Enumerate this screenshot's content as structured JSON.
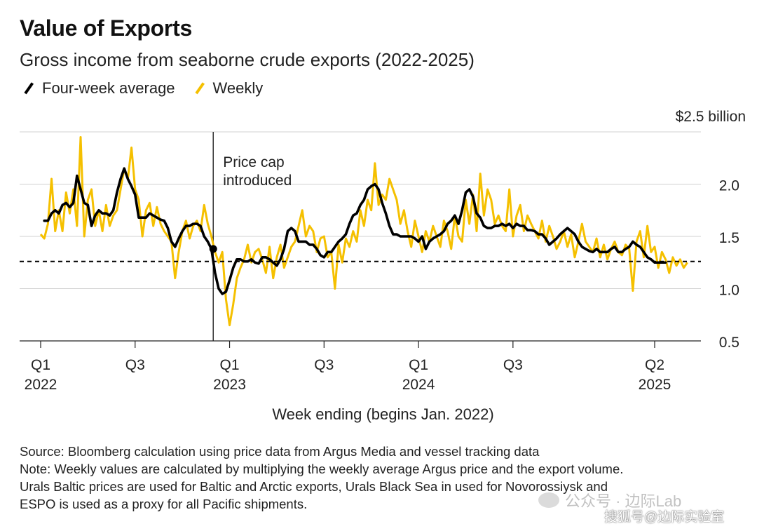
{
  "title": "Value of Exports",
  "subtitle": "Gross income from seaborne crude exports (2022-2025)",
  "legend": {
    "avg_label": "Four-week average",
    "weekly_label": "Weekly"
  },
  "x_axis_title": "Week ending (begins Jan. 2022)",
  "footer": {
    "line1": "Source: Bloomberg calculation using price data from Argus Media and vessel tracking data",
    "line2": "Note: Weekly values are calculated by multiplying the weekly average Argus price and the export volume.",
    "line3": "Urals Baltic prices are used for Baltic and Arctic exports, Urals Black Sea in used for Novorossiysk and",
    "line4": "ESPO is used as a proxy for all Pacific shipments."
  },
  "watermark": {
    "line1": "公众号 · 边际Lab",
    "line2": "搜狐号@边际实验室"
  },
  "colors": {
    "weekly": "#f5c000",
    "average": "#000000",
    "grid": "#d0d0d0",
    "axis": "#222222"
  },
  "chart_data": {
    "type": "line",
    "title": "Value of Exports",
    "subtitle": "Gross income from seaborne crude exports (2022-2025)",
    "xlabel": "Week ending (begins Jan. 2022)",
    "ylabel": "",
    "y_unit": "$ billion",
    "ylim": [
      0.35,
      2.5
    ],
    "y_ticks": [
      {
        "value": 2.5,
        "label": "$2.5 billion"
      },
      {
        "value": 2.0,
        "label": "2.0"
      },
      {
        "value": 1.5,
        "label": "1.5"
      },
      {
        "value": 1.0,
        "label": "1.0"
      },
      {
        "value": 0.5,
        "label": "0.5"
      }
    ],
    "x_ticks": [
      {
        "week": 0,
        "line1": "Q1",
        "line2": "2022"
      },
      {
        "week": 26,
        "line1": "Q3",
        "line2": ""
      },
      {
        "week": 52,
        "line1": "Q1",
        "line2": "2023"
      },
      {
        "week": 78,
        "line1": "Q3",
        "line2": ""
      },
      {
        "week": 104,
        "line1": "Q1",
        "line2": "2024"
      },
      {
        "week": 130,
        "line1": "Q3",
        "line2": ""
      },
      {
        "week": 169,
        "line1": "Q2",
        "line2": "2025"
      }
    ],
    "x_domain": [
      -5,
      182
    ],
    "grid": true,
    "legend_position": "top-left",
    "reference_line": {
      "value": 1.26,
      "style": "dashed"
    },
    "annotation": {
      "week": 47.5,
      "line1": "Price cap",
      "line2": "introduced",
      "marker_value": 1.38
    },
    "series": [
      {
        "name": "Weekly",
        "values": [
          1.52,
          1.48,
          1.62,
          2.05,
          1.55,
          1.75,
          1.55,
          1.92,
          1.72,
          1.95,
          1.6,
          2.45,
          1.5,
          1.85,
          1.95,
          1.6,
          1.75,
          1.55,
          1.8,
          1.6,
          1.7,
          1.75,
          1.95,
          2.15,
          2.05,
          2.35,
          1.95,
          1.85,
          1.5,
          1.75,
          1.82,
          1.6,
          1.78,
          1.62,
          1.55,
          1.5,
          1.45,
          1.1,
          1.35,
          1.55,
          1.65,
          1.48,
          1.6,
          1.65,
          1.55,
          1.8,
          1.62,
          1.5,
          1.35,
          1.25,
          1.35,
          0.9,
          0.65,
          0.85,
          1.1,
          1.2,
          1.28,
          1.42,
          1.25,
          1.35,
          1.38,
          1.28,
          1.15,
          1.4,
          1.1,
          1.3,
          1.42,
          1.2,
          1.3,
          1.4,
          1.45,
          1.6,
          1.75,
          1.5,
          1.6,
          1.55,
          1.35,
          1.48,
          1.5,
          1.3,
          1.35,
          1.0,
          1.42,
          1.25,
          1.48,
          1.4,
          1.55,
          1.45,
          1.75,
          1.6,
          1.85,
          1.75,
          2.2,
          1.8,
          1.9,
          1.85,
          2.05,
          1.95,
          1.85,
          1.62,
          1.75,
          1.55,
          1.4,
          1.65,
          1.5,
          1.35,
          1.55,
          1.45,
          1.6,
          1.5,
          1.4,
          1.65,
          1.55,
          1.38,
          1.7,
          1.5,
          1.45,
          1.85,
          1.62,
          1.9,
          1.55,
          2.1,
          1.7,
          1.95,
          1.85,
          1.62,
          1.7,
          1.6,
          1.55,
          1.95,
          1.5,
          1.7,
          1.8,
          1.55,
          1.7,
          1.62,
          1.55,
          1.48,
          1.65,
          1.45,
          1.6,
          1.5,
          1.38,
          1.45,
          1.55,
          1.4,
          1.52,
          1.3,
          1.45,
          1.62,
          1.45,
          1.4,
          1.35,
          1.48,
          1.3,
          1.42,
          1.28,
          1.38,
          1.45,
          1.35,
          1.32,
          1.42,
          1.38,
          0.98,
          1.45,
          1.55,
          1.3,
          1.6,
          1.35,
          1.4,
          1.2,
          1.35,
          1.28,
          1.15,
          1.3,
          1.22,
          1.28,
          1.2,
          1.25
        ]
      },
      {
        "name": "Four-week average",
        "start_week": 1,
        "values": [
          1.65,
          1.65,
          1.72,
          1.75,
          1.72,
          1.8,
          1.82,
          1.78,
          1.82,
          2.08,
          1.95,
          1.82,
          1.8,
          1.6,
          1.7,
          1.75,
          1.72,
          1.72,
          1.7,
          1.75,
          1.92,
          2.05,
          2.15,
          2.05,
          1.98,
          1.9,
          1.68,
          1.68,
          1.68,
          1.72,
          1.7,
          1.68,
          1.66,
          1.65,
          1.58,
          1.45,
          1.4,
          1.48,
          1.55,
          1.6,
          1.6,
          1.62,
          1.62,
          1.6,
          1.5,
          1.45,
          1.38,
          1.15,
          1.0,
          0.95,
          0.97,
          1.08,
          1.2,
          1.28,
          1.28,
          1.26,
          1.26,
          1.28,
          1.25,
          1.24,
          1.3,
          1.3,
          1.28,
          1.25,
          1.22,
          1.28,
          1.38,
          1.55,
          1.58,
          1.55,
          1.45,
          1.45,
          1.45,
          1.42,
          1.42,
          1.38,
          1.32,
          1.3,
          1.35,
          1.35,
          1.4,
          1.45,
          1.48,
          1.52,
          1.62,
          1.7,
          1.72,
          1.8,
          1.85,
          1.95,
          1.98,
          2.0,
          1.95,
          1.82,
          1.72,
          1.6,
          1.52,
          1.52,
          1.5,
          1.5,
          1.5,
          1.5,
          1.48,
          1.45,
          1.5,
          1.38,
          1.45,
          1.48,
          1.5,
          1.52,
          1.55,
          1.62,
          1.65,
          1.7,
          1.62,
          1.75,
          1.92,
          1.95,
          1.88,
          1.72,
          1.68,
          1.6,
          1.58,
          1.58,
          1.6,
          1.6,
          1.62,
          1.6,
          1.62,
          1.58,
          1.62,
          1.6,
          1.6,
          1.56,
          1.56,
          1.55,
          1.52,
          1.52,
          1.48,
          1.42,
          1.45,
          1.48,
          1.52,
          1.55,
          1.58,
          1.55,
          1.52,
          1.45,
          1.4,
          1.38,
          1.36,
          1.35,
          1.38,
          1.35,
          1.35,
          1.35,
          1.38,
          1.4,
          1.35,
          1.35,
          1.38,
          1.4,
          1.45,
          1.42,
          1.4,
          1.35,
          1.3,
          1.28,
          1.25,
          1.25,
          1.25,
          1.25
        ]
      }
    ]
  }
}
